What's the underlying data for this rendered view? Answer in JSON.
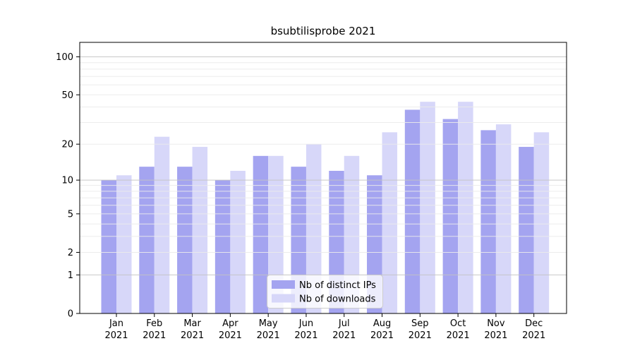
{
  "chart_data": {
    "type": "bar",
    "title": "bsubtilisprobe 2021",
    "categories": [
      "Jan",
      "Feb",
      "Mar",
      "Apr",
      "May",
      "Jun",
      "Jul",
      "Aug",
      "Sep",
      "Oct",
      "Nov",
      "Dec"
    ],
    "x_year": "2021",
    "series": [
      {
        "name": "Nb of distinct IPs",
        "color": "#a4a4f0",
        "values": [
          10,
          13,
          13,
          10,
          16,
          13,
          12,
          11,
          38,
          32,
          26,
          19
        ]
      },
      {
        "name": "Nb of downloads",
        "color": "#d7d7f9",
        "values": [
          11,
          23,
          19,
          12,
          16,
          20,
          16,
          25,
          44,
          44,
          29,
          25
        ]
      }
    ],
    "yscale": "log1p",
    "ylim": [
      0,
      130
    ],
    "y_ticks": [
      0,
      1,
      2,
      5,
      10,
      20,
      50,
      100
    ],
    "y_major_gridlines": [
      1,
      10,
      100
    ],
    "y_minor_gridlines": [
      2,
      3,
      4,
      5,
      6,
      7,
      8,
      9,
      20,
      30,
      40,
      50,
      60,
      70,
      80,
      90
    ],
    "grid": true,
    "legend_position": "lower center",
    "colors": {
      "axis": "#000000",
      "major_grid": "#c3c3c3",
      "minor_grid": "#ebebeb",
      "legend_border": "#cccccc",
      "legend_background": "#ffffff"
    }
  }
}
